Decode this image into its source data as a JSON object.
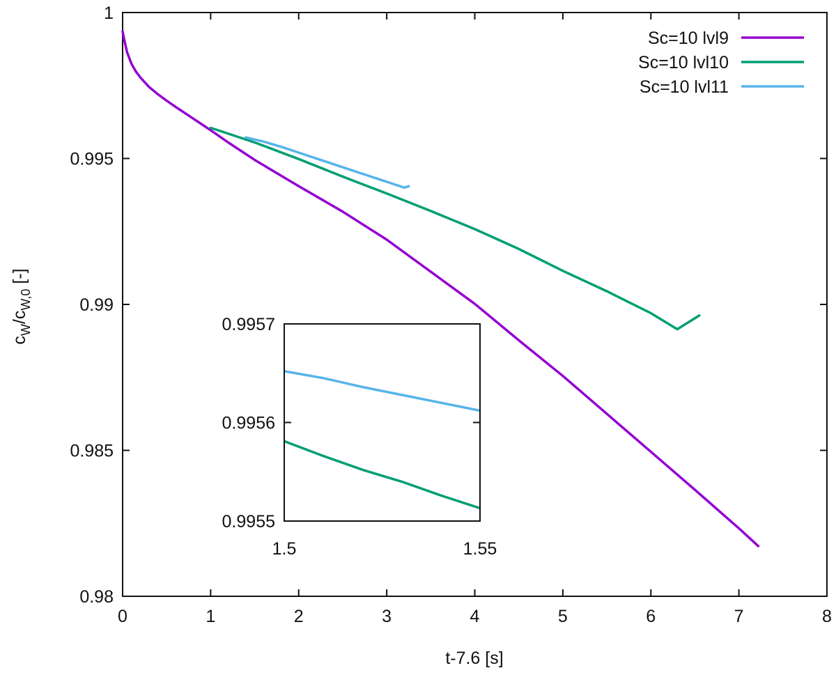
{
  "chart_data": [
    {
      "type": "line",
      "xlabel": "t-7.6 [s]",
      "ylabel": "c_W/c_W,0 [-]",
      "ylabel_parts": {
        "main1": "c",
        "sub1": "W",
        "slash": "/",
        "main2": "c",
        "sub2": "W,0",
        "unit": " [-]"
      },
      "xlim": [
        0,
        8
      ],
      "ylim": [
        0.98,
        1.0
      ],
      "xticks": [
        "0",
        "1",
        "2",
        "3",
        "4",
        "5",
        "6",
        "7",
        "8"
      ],
      "yticks": [
        "0.98",
        "0.985",
        "0.99",
        "0.995",
        "1"
      ],
      "legend_position": "top-right",
      "series": [
        {
          "name": "Sc=10 lvl9",
          "color": "#9400D3",
          "x": [
            0.0,
            0.02,
            0.05,
            0.1,
            0.15,
            0.2,
            0.3,
            0.4,
            0.5,
            0.6,
            0.7,
            0.8,
            0.9,
            1.0,
            1.2,
            1.5,
            2.0,
            2.5,
            3.0,
            3.5,
            4.0,
            4.5,
            5.0,
            5.5,
            6.0,
            6.5,
            7.0,
            7.22
          ],
          "y": [
            0.99935,
            0.99905,
            0.99865,
            0.99825,
            0.99798,
            0.99778,
            0.99745,
            0.9972,
            0.99698,
            0.99677,
            0.99657,
            0.99637,
            0.99617,
            0.99597,
            0.99555,
            0.99495,
            0.99405,
            0.99318,
            0.99222,
            0.99112,
            0.99002,
            0.98877,
            0.98755,
            0.98625,
            0.98495,
            0.98365,
            0.98233,
            0.98172
          ]
        },
        {
          "name": "Sc=10 lvl10",
          "color": "#009E73",
          "x": [
            1.0,
            1.5,
            2.0,
            2.5,
            3.0,
            3.5,
            4.0,
            4.5,
            5.0,
            5.5,
            6.0,
            6.3,
            6.55
          ],
          "y": [
            0.99605,
            0.99555,
            0.99498,
            0.99438,
            0.9938,
            0.9932,
            0.99258,
            0.9919,
            0.99115,
            0.99045,
            0.9897,
            0.98915,
            0.98962
          ]
        },
        {
          "name": "Sc=10 lvl11",
          "color": "#56B4E9",
          "x": [
            1.4,
            1.6,
            1.8,
            2.0,
            2.3,
            2.6,
            2.9,
            3.2,
            3.25
          ],
          "y": [
            0.99572,
            0.99558,
            0.9954,
            0.9952,
            0.9949,
            0.9946,
            0.9943,
            0.994,
            0.99405
          ]
        }
      ]
    },
    {
      "type": "line",
      "title": "",
      "xlabel": "",
      "ylabel": "",
      "xlim": [
        1.5,
        1.55
      ],
      "ylim": [
        0.9955,
        0.9957
      ],
      "xticks": [
        "1.5",
        "1.55"
      ],
      "yticks": [
        "0.9955",
        "0.9956",
        "0.9957"
      ],
      "series": [
        {
          "name": "Sc=10 lvl10",
          "color": "#009E73",
          "x": [
            1.5,
            1.51,
            1.52,
            1.53,
            1.54,
            1.55
          ],
          "y": [
            0.995581,
            0.995566,
            0.995552,
            0.99554,
            0.995526,
            0.995513
          ]
        },
        {
          "name": "Sc=10 lvl11",
          "color": "#56B4E9",
          "x": [
            1.5,
            1.51,
            1.52,
            1.53,
            1.54,
            1.55
          ],
          "y": [
            0.995652,
            0.995645,
            0.995636,
            0.995628,
            0.99562,
            0.995612
          ]
        }
      ]
    }
  ]
}
